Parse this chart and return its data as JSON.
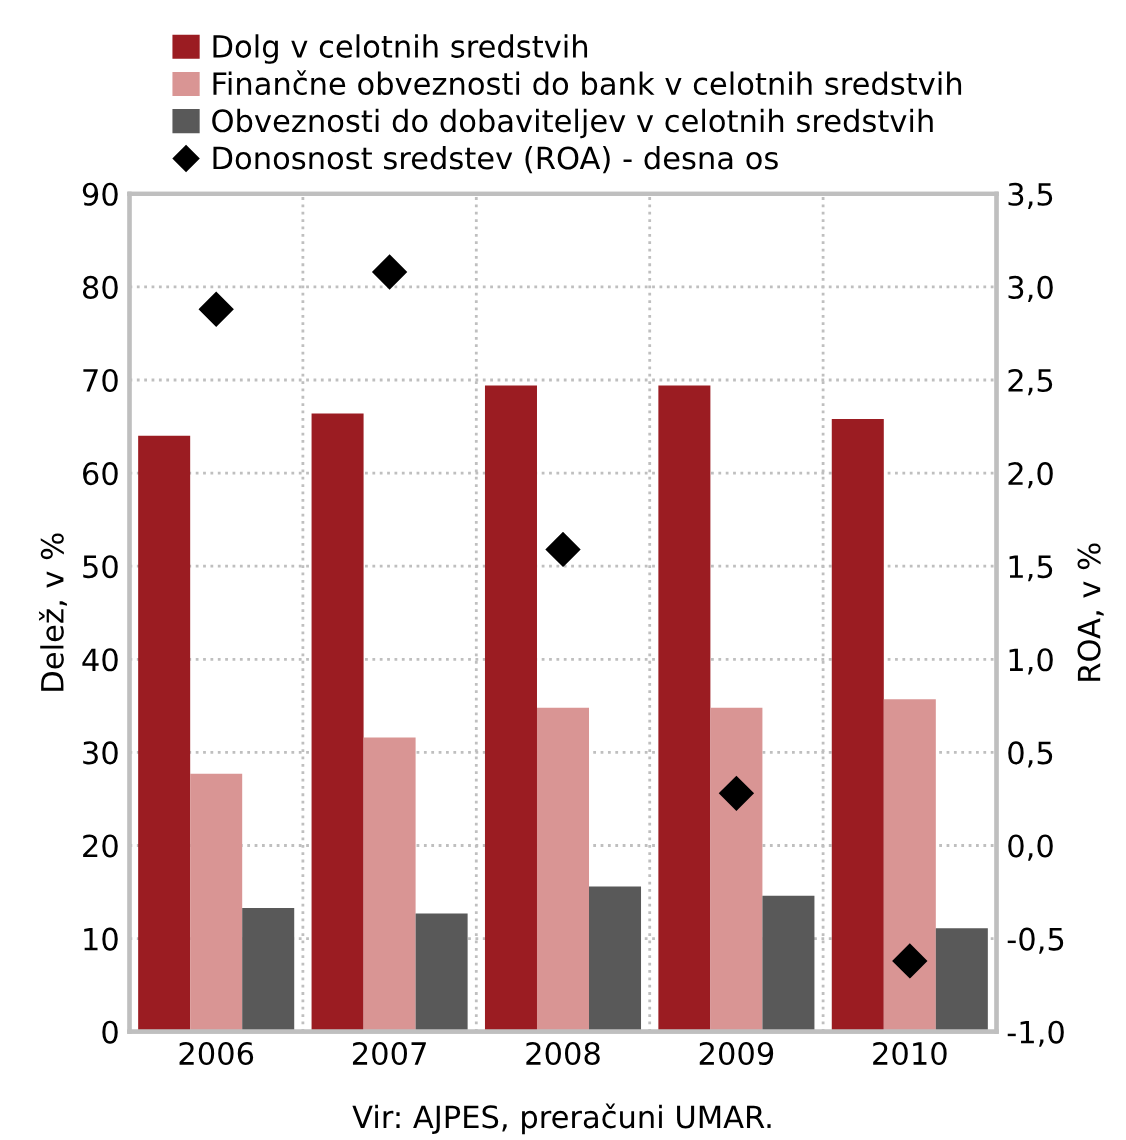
{
  "chart_data": {
    "type": "bar",
    "categories": [
      "2006",
      "2007",
      "2008",
      "2009",
      "2010"
    ],
    "series": [
      {
        "name": "Dolg v celotnih sredstvih",
        "color": "#9b1c22",
        "values": [
          64.0,
          66.4,
          69.4,
          69.4,
          65.8
        ]
      },
      {
        "name": "Finančne obveznosti do bank v celotnih sredstvih",
        "color": "#d99594",
        "values": [
          27.7,
          31.6,
          34.8,
          34.8,
          35.7
        ]
      },
      {
        "name": "Obveznosti do dobaviteljev v celotnih sredstvih",
        "color": "#595959",
        "values": [
          13.3,
          12.7,
          15.6,
          14.6,
          11.1
        ]
      },
      {
        "name": "Donosnost sredstev (ROA) - desna os",
        "type": "scatter",
        "axis": "y2",
        "marker": "diamond",
        "color": "#000000",
        "values": [
          2.88,
          3.08,
          1.59,
          0.28,
          -0.62
        ]
      }
    ],
    "ylabel": "Delež, v %",
    "y2label": "ROA, v %",
    "ylim": [
      0,
      90
    ],
    "yticks": [
      0,
      10,
      20,
      30,
      40,
      50,
      60,
      70,
      80,
      90
    ],
    "y2lim": [
      -1.0,
      3.5
    ],
    "y2ticks": [
      {
        "value": -1.0,
        "label": "-1,0"
      },
      {
        "value": -0.5,
        "label": "-0,5"
      },
      {
        "value": 0.0,
        "label": "0,0"
      },
      {
        "value": 0.5,
        "label": "0,5"
      },
      {
        "value": 1.0,
        "label": "1,0"
      },
      {
        "value": 1.5,
        "label": "1,5"
      },
      {
        "value": 2.0,
        "label": "2,0"
      },
      {
        "value": 2.5,
        "label": "2,5"
      },
      {
        "value": 3.0,
        "label": "3,0"
      },
      {
        "value": 3.5,
        "label": "3,5"
      }
    ],
    "grid": true,
    "legend": "top",
    "annotations": [
      "Vir: AJPES, preračuni UMAR."
    ]
  }
}
